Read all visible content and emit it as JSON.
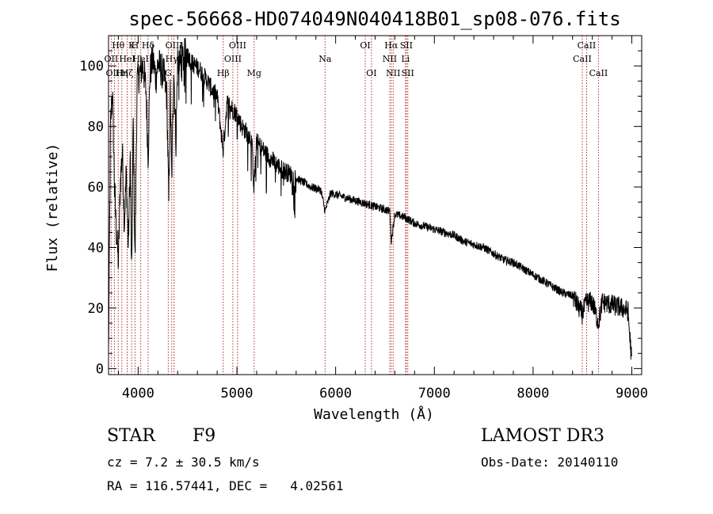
{
  "chart_data": {
    "type": "line",
    "title": "spec-56668-HD074049N040418B01_sp08-076.fits",
    "xlabel": "Wavelength (Å)",
    "ylabel": "Flux (relative)",
    "xlim": [
      3700,
      9100
    ],
    "ylim": [
      -2,
      110
    ],
    "xticks": [
      4000,
      5000,
      6000,
      7000,
      8000,
      9000
    ],
    "yticks": [
      0,
      20,
      40,
      60,
      80,
      100
    ],
    "grid": false,
    "colors": {
      "spectrum": "#000000",
      "lines": "#b03030",
      "axes": "#000000"
    },
    "spectrum_envelope": {
      "x": [
        3700,
        3720,
        3740,
        3760,
        3780,
        3800,
        3820,
        3840,
        3860,
        3880,
        3900,
        3920,
        3934,
        3950,
        3968,
        3990,
        4020,
        4050,
        4080,
        4101,
        4120,
        4150,
        4180,
        4200,
        4230,
        4260,
        4290,
        4310,
        4325,
        4340,
        4360,
        4383,
        4400,
        4430,
        4460,
        4500,
        4540,
        4580,
        4620,
        4660,
        4700,
        4750,
        4800,
        4861,
        4900,
        4950,
        5000,
        5050,
        5100,
        5150,
        5172,
        5200,
        5270,
        5350,
        5450,
        5550,
        5650,
        5750,
        5850,
        5893,
        5950,
        6050,
        6150,
        6250,
        6350,
        6450,
        6550,
        6563,
        6600,
        6700,
        6800,
        6900,
        7000,
        7100,
        7200,
        7300,
        7400,
        7500,
        7600,
        7700,
        7800,
        7900,
        8000,
        8100,
        8200,
        8300,
        8400,
        8498,
        8542,
        8600,
        8662,
        8700,
        8800,
        8900,
        8960,
        9000
      ],
      "y": [
        5,
        80,
        92,
        60,
        45,
        35,
        62,
        72,
        48,
        65,
        40,
        70,
        28,
        82,
        35,
        95,
        98,
        100,
        92,
        70,
        98,
        102,
        96,
        101,
        99,
        97,
        90,
        55,
        92,
        62,
        100,
        75,
        102,
        101,
        103,
        104,
        101,
        100,
        99,
        97,
        95,
        92,
        90,
        72,
        88,
        86,
        84,
        80,
        78,
        76,
        60,
        75,
        72,
        69,
        66,
        64,
        62,
        60,
        59,
        52,
        58,
        57,
        56,
        55,
        54,
        53,
        52,
        42,
        51,
        50,
        48,
        47,
        46,
        45,
        44,
        42,
        41,
        40,
        38,
        36,
        35,
        33,
        31,
        29,
        27,
        25,
        24,
        18,
        22,
        22,
        15,
        22,
        21,
        20,
        19,
        2
      ]
    },
    "spectral_lines": [
      {
        "label": "Hθ",
        "x": 3798,
        "row": 0
      },
      {
        "label": "OII",
        "x": 3727,
        "row": 1
      },
      {
        "label": "OIII",
        "x": 3760,
        "row": 2
      },
      {
        "label": "K",
        "x": 3934,
        "row": 0
      },
      {
        "label": "H",
        "x": 3968,
        "row": 0
      },
      {
        "label": "HeI",
        "x": 3889,
        "row": 1
      },
      {
        "label": "Hη",
        "x": 3835,
        "row": 2
      },
      {
        "label": "Hζ",
        "x": 3889,
        "row": 2
      },
      {
        "label": "Hδ",
        "x": 4101,
        "row": 0
      },
      {
        "label": "HeI",
        "x": 4026,
        "row": 1
      },
      {
        "label": "OIII",
        "x": 4363,
        "row": 0
      },
      {
        "label": "Hγ",
        "x": 4340,
        "row": 1
      },
      {
        "label": "G",
        "x": 4305,
        "row": 2
      },
      {
        "label": "OIII",
        "x": 5007,
        "row": 0
      },
      {
        "label": "OIII",
        "x": 4959,
        "row": 1
      },
      {
        "label": "Hβ",
        "x": 4861,
        "row": 2
      },
      {
        "label": "Mg",
        "x": 5175,
        "row": 2
      },
      {
        "label": "Na",
        "x": 5893,
        "row": 1
      },
      {
        "label": "OI",
        "x": 6300,
        "row": 0
      },
      {
        "label": "OI",
        "x": 6363,
        "row": 2
      },
      {
        "label": "Hα",
        "x": 6563,
        "row": 0
      },
      {
        "label": "SII",
        "x": 6716,
        "row": 0
      },
      {
        "label": "NII",
        "x": 6548,
        "row": 1
      },
      {
        "label": "Li",
        "x": 6708,
        "row": 1
      },
      {
        "label": "NII",
        "x": 6583,
        "row": 2
      },
      {
        "label": "SII",
        "x": 6731,
        "row": 2
      },
      {
        "label": "CaII",
        "x": 8542,
        "row": 0
      },
      {
        "label": "CaII",
        "x": 8498,
        "row": 1
      },
      {
        "label": "CaII",
        "x": 8662,
        "row": 2
      }
    ]
  },
  "info": {
    "object_class": "STAR",
    "subclass": "F9",
    "survey": "LAMOST DR3",
    "redshift": "cz = 7.2 ± 30.5 km/s",
    "obs_date": "Obs-Date: 20140110",
    "coords": "RA = 116.57441, DEC =   4.02561"
  }
}
